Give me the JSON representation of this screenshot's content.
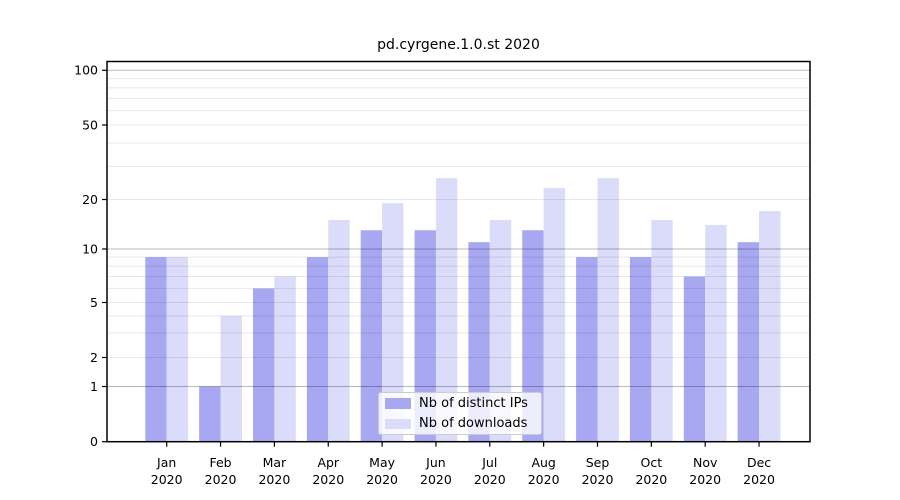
{
  "chart_data": {
    "type": "bar",
    "title": "pd.cyrgene.1.0.st 2020",
    "categories": [
      "Jan",
      "Feb",
      "Mar",
      "Apr",
      "May",
      "Jun",
      "Jul",
      "Aug",
      "Sep",
      "Oct",
      "Nov",
      "Dec"
    ],
    "x_year_label": "2020",
    "series": [
      {
        "name": "Nb of distinct IPs",
        "color": "#a7a7f2",
        "values": [
          9,
          1,
          6,
          9,
          13,
          13,
          11,
          13,
          9,
          9,
          7,
          11
        ]
      },
      {
        "name": "Nb of downloads",
        "color": "#dbdbfa",
        "values": [
          9,
          4,
          7,
          15,
          19,
          26,
          15,
          23,
          26,
          15,
          14,
          17
        ]
      }
    ],
    "y_axis": {
      "scale": "log1p",
      "ticks": [
        100,
        50,
        20,
        10,
        5,
        2,
        1,
        0
      ],
      "range": [
        0,
        112
      ]
    },
    "grid": {
      "major": [
        1,
        10,
        100
      ],
      "minor": [
        2,
        3,
        4,
        5,
        6,
        7,
        8,
        9,
        20,
        30,
        40,
        50,
        60,
        70,
        80,
        90
      ],
      "major_color": "rgba(0,0,0,0.28)",
      "minor_color": "rgba(0,0,0,0.09)"
    },
    "legend": {
      "position": "lower-center"
    }
  }
}
